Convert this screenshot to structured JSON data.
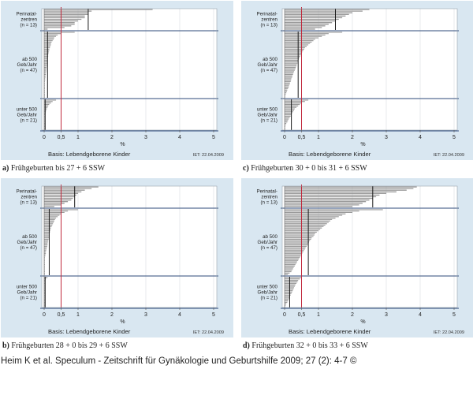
{
  "figure": {
    "footer": "Heim K et al. Speculum - Zeitschrift für Gynäkologie und Geburtshilfe 2009; 27 (2): 4-7 ©"
  },
  "chart_data": [
    {
      "type": "bar",
      "orientation": "horizontal",
      "caption_letter": "a)",
      "caption_text": "Frühgeburten bis 27 + 6 SSW",
      "xlabel": "%",
      "basis_label": "Basis: Lebendgeborene Kinder",
      "date_label": "IET: 22.04.2009",
      "xlim": [
        0,
        5
      ],
      "xticks": [
        "0",
        "0,5",
        "1",
        "2",
        "3",
        "4",
        "5"
      ],
      "xtick_values": [
        0,
        0.5,
        1,
        2,
        3,
        4,
        5
      ],
      "reference_line": 0.5,
      "groups": [
        {
          "label_lines": [
            "Perinatal-",
            "zentren",
            "(n = 13)"
          ],
          "median": 1.3,
          "values": [
            3.2,
            1.4,
            1.3,
            1.3,
            1.2,
            1.2,
            1.1,
            1.0,
            0.9,
            0.9,
            0.8,
            0.6,
            0.1
          ]
        },
        {
          "label_lines": [
            "ab 500",
            "Geb/Jahr",
            "(n = 47)"
          ],
          "median": 0.1,
          "values": [
            0.9,
            0.5,
            0.4,
            0.35,
            0.3,
            0.28,
            0.25,
            0.22,
            0.2,
            0.2,
            0.18,
            0.17,
            0.15,
            0.15,
            0.14,
            0.13,
            0.12,
            0.12,
            0.11,
            0.1,
            0.1,
            0.1,
            0.09,
            0.08,
            0.08,
            0.07,
            0.07,
            0.06,
            0.06,
            0.05,
            0.05,
            0.04,
            0.04,
            0.03,
            0.03,
            0.02,
            0.02,
            0.02,
            0.01,
            0.01,
            0,
            0,
            0,
            0,
            0,
            0,
            0
          ]
        },
        {
          "label_lines": [
            "unter 500",
            "Geb/Jahr",
            "(n = 21)"
          ],
          "median": 0.03,
          "values": [
            0.35,
            0.25,
            0.2,
            0.15,
            0.12,
            0.1,
            0.08,
            0.06,
            0.05,
            0.04,
            0.03,
            0.02,
            0.02,
            0.01,
            0.01,
            0,
            0,
            0,
            0,
            0,
            0
          ]
        }
      ]
    },
    {
      "type": "bar",
      "orientation": "horizontal",
      "caption_letter": "c)",
      "caption_text": "Frühgeburten 30 + 0 bis 31 + 6 SSW",
      "xlabel": "%",
      "basis_label": "Basis: Lebendgeborene Kinder",
      "date_label": "IET: 22.04.2009",
      "xlim": [
        0,
        5
      ],
      "xticks": [
        "0",
        "0,5",
        "1",
        "2",
        "3",
        "4",
        "5"
      ],
      "xtick_values": [
        0,
        0.5,
        1,
        2,
        3,
        4,
        5
      ],
      "reference_line": 0.5,
      "groups": [
        {
          "label_lines": [
            "Perinatal-",
            "zentren",
            "(n = 13)"
          ],
          "median": 1.5,
          "values": [
            2.5,
            2.3,
            2.0,
            1.9,
            1.8,
            1.7,
            1.6,
            1.5,
            1.4,
            1.3,
            1.2,
            1.1,
            0.9
          ]
        },
        {
          "label_lines": [
            "ab 500",
            "Geb/Jahr",
            "(n = 47)"
          ],
          "median": 0.4,
          "values": [
            1.7,
            1.3,
            1.2,
            1.1,
            1.0,
            0.9,
            0.85,
            0.8,
            0.75,
            0.7,
            0.65,
            0.6,
            0.58,
            0.55,
            0.52,
            0.5,
            0.48,
            0.46,
            0.44,
            0.42,
            0.4,
            0.4,
            0.38,
            0.36,
            0.35,
            0.33,
            0.32,
            0.3,
            0.28,
            0.26,
            0.25,
            0.23,
            0.22,
            0.2,
            0.19,
            0.18,
            0.16,
            0.15,
            0.13,
            0.12,
            0.1,
            0.08,
            0.07,
            0.05,
            0.03,
            0.02,
            0
          ]
        },
        {
          "label_lines": [
            "unter 500",
            "Geb/Jahr",
            "(n = 21)"
          ],
          "median": 0.2,
          "values": [
            0.7,
            0.6,
            0.5,
            0.45,
            0.4,
            0.35,
            0.3,
            0.28,
            0.25,
            0.22,
            0.2,
            0.18,
            0.15,
            0.12,
            0.1,
            0.08,
            0.05,
            0.03,
            0,
            0,
            0
          ]
        }
      ]
    },
    {
      "type": "bar",
      "orientation": "horizontal",
      "caption_letter": "b)",
      "caption_text": "Frühgeburten 28 + 0 bis 29 + 6 SSW",
      "xlabel": "%",
      "basis_label": "Basis: Lebendgeborene Kinder",
      "date_label": "IET: 22.04.2009",
      "xlim": [
        0,
        5
      ],
      "xticks": [
        "0",
        "0,5",
        "1",
        "2",
        "3",
        "4",
        "5"
      ],
      "xtick_values": [
        0,
        0.5,
        1,
        2,
        3,
        4,
        5
      ],
      "reference_line": 0.5,
      "groups": [
        {
          "label_lines": [
            "Perinatal-",
            "zentren",
            "(n = 13)"
          ],
          "median": 0.9,
          "values": [
            1.6,
            1.4,
            1.2,
            1.1,
            1.0,
            0.95,
            0.9,
            0.85,
            0.8,
            0.7,
            0.6,
            0.5,
            0.3
          ]
        },
        {
          "label_lines": [
            "ab 500",
            "Geb/Jahr",
            "(n = 47)"
          ],
          "median": 0.15,
          "values": [
            1.0,
            0.7,
            0.6,
            0.5,
            0.45,
            0.4,
            0.35,
            0.32,
            0.3,
            0.28,
            0.26,
            0.24,
            0.22,
            0.2,
            0.19,
            0.18,
            0.17,
            0.16,
            0.15,
            0.15,
            0.14,
            0.13,
            0.12,
            0.11,
            0.1,
            0.1,
            0.09,
            0.08,
            0.07,
            0.06,
            0.05,
            0.05,
            0.04,
            0.03,
            0.02,
            0.02,
            0.01,
            0.01,
            0,
            0,
            0,
            0,
            0,
            0,
            0,
            0,
            0
          ]
        },
        {
          "label_lines": [
            "unter 500",
            "Geb/Jahr",
            "(n = 21)"
          ],
          "median": 0.03,
          "values": [
            0.1,
            0.05,
            0.03,
            0.02,
            0.01,
            0,
            0,
            0,
            0,
            0,
            0,
            0,
            0,
            0,
            0,
            0,
            0,
            0,
            0,
            0,
            0
          ]
        }
      ]
    },
    {
      "type": "bar",
      "orientation": "horizontal",
      "caption_letter": "d)",
      "caption_text": "Frühgeburten 32 + 0 bis 33 + 6 SSW",
      "xlabel": "%",
      "basis_label": "Basis: Lebendgeborene Kinder",
      "date_label": "IET: 22.04.2009",
      "xlim": [
        0,
        5
      ],
      "xticks": [
        "0",
        "0,5",
        "1",
        "2",
        "3",
        "4",
        "5"
      ],
      "xtick_values": [
        0,
        0.5,
        1,
        2,
        3,
        4,
        5
      ],
      "reference_line": 0.5,
      "groups": [
        {
          "label_lines": [
            "Perinatal-",
            "zentren",
            "(n = 13)"
          ],
          "median": 2.6,
          "values": [
            3.9,
            3.8,
            3.6,
            3.3,
            3.0,
            2.8,
            2.7,
            2.6,
            2.5,
            2.4,
            2.3,
            2.2,
            2.0
          ]
        },
        {
          "label_lines": [
            "ab 500",
            "Geb/Jahr",
            "(n = 47)"
          ],
          "median": 0.7,
          "values": [
            2.9,
            2.2,
            2.0,
            1.8,
            1.7,
            1.6,
            1.5,
            1.4,
            1.35,
            1.3,
            1.25,
            1.2,
            1.15,
            1.1,
            1.05,
            1.0,
            0.95,
            0.9,
            0.88,
            0.85,
            0.8,
            0.78,
            0.75,
            0.72,
            0.7,
            0.68,
            0.65,
            0.62,
            0.6,
            0.57,
            0.55,
            0.52,
            0.5,
            0.47,
            0.45,
            0.42,
            0.4,
            0.37,
            0.35,
            0.32,
            0.3,
            0.27,
            0.25,
            0.22,
            0.2,
            0.15,
            0.1
          ]
        },
        {
          "label_lines": [
            "unter 500",
            "Geb/Jahr",
            "(n = 21)"
          ],
          "median": 0.15,
          "values": [
            0.5,
            0.45,
            0.4,
            0.38,
            0.35,
            0.32,
            0.3,
            0.28,
            0.26,
            0.24,
            0.22,
            0.2,
            0.18,
            0.16,
            0.14,
            0.12,
            0.1,
            0.08,
            0.05,
            0.03,
            0
          ]
        }
      ]
    }
  ]
}
